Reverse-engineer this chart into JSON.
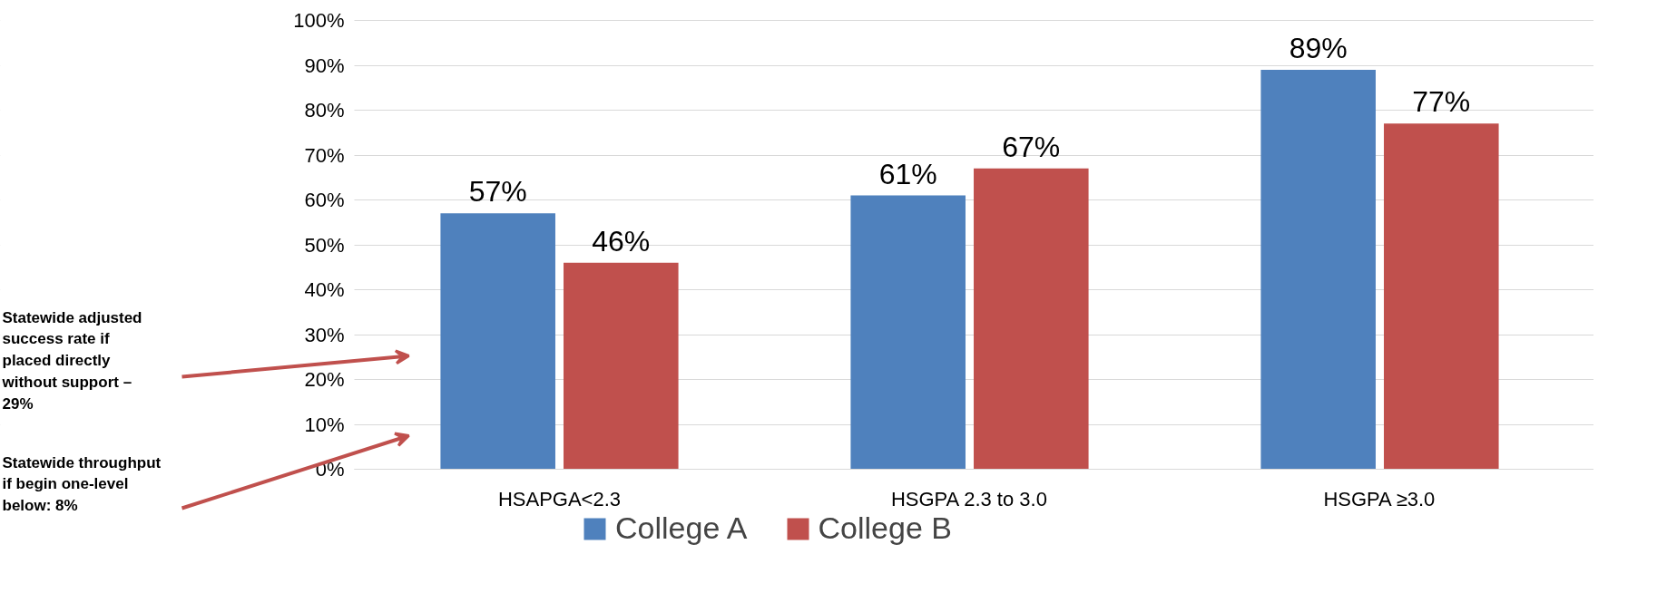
{
  "chart_data": {
    "type": "bar",
    "categories": [
      "HSAPGA<2.3",
      "HSGPA 2.3 to 3.0",
      "HSGPA ≥3.0"
    ],
    "series": [
      {
        "name": "College A",
        "color": "#4f81bd",
        "values": [
          57,
          61,
          89
        ]
      },
      {
        "name": "College B",
        "color": "#c0504d",
        "values": [
          46,
          67,
          77
        ]
      }
    ],
    "ylim": [
      0,
      100
    ],
    "yticks": [
      {
        "value": 0,
        "label": "0%"
      },
      {
        "value": 10,
        "label": "10%"
      },
      {
        "value": 20,
        "label": "20%"
      },
      {
        "value": 30,
        "label": "30%"
      },
      {
        "value": 40,
        "label": "40%"
      },
      {
        "value": 50,
        "label": "50%"
      },
      {
        "value": 60,
        "label": "60%"
      },
      {
        "value": 70,
        "label": "70%"
      },
      {
        "value": 80,
        "label": "80%"
      },
      {
        "value": 90,
        "label": "90%"
      },
      {
        "value": 100,
        "label": "100%"
      }
    ],
    "value_labels": [
      [
        "57%",
        "61%",
        "89%"
      ],
      [
        "46%",
        "67%",
        "77%"
      ]
    ],
    "annotations": [
      "Statewide adjusted success rate if placed directly without support – 29%",
      "Statewide throughput if begin one-level below: 8%"
    ],
    "grid": "y",
    "legend": "bottom"
  }
}
